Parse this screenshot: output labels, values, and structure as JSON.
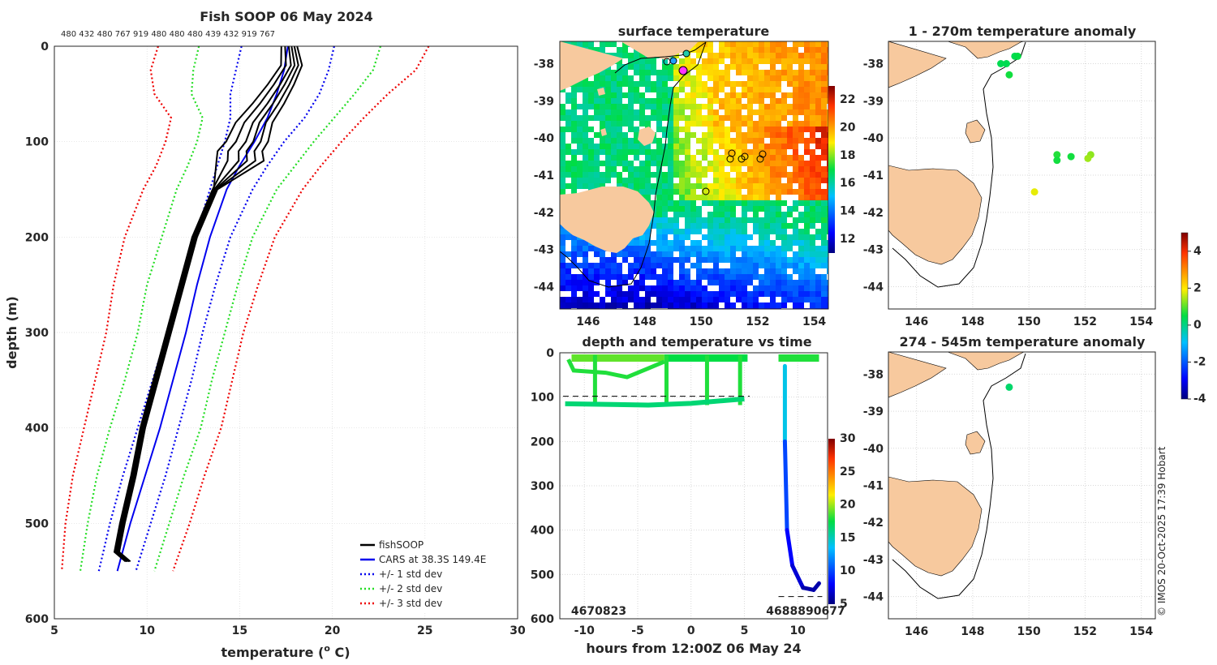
{
  "colors": {
    "land": "#f7c99e",
    "ocean_bg": "#ffffff"
  },
  "icons": {
    "colorbar_sst": "jet-colorbar-icon",
    "colorbar_anom": "jet-colorbar-icon"
  },
  "profile": {
    "title": "Fish SOOP 06 May 2024",
    "top_labels": "480 432 480 767 919 480 480 480 439 432 919 767",
    "xlabel_text": "temperature (",
    "xlabel_sup": "o",
    "xlabel_end": " C)",
    "ylabel": "depth (m)",
    "legend": [
      {
        "label": "fishSOOP",
        "color": "#000000",
        "dash": ""
      },
      {
        "label": "CARS at 38.3S 149.4E",
        "color": "#0000ee",
        "dash": ""
      },
      {
        "label": "+/- 1 std dev",
        "color": "#0000ee",
        "dash": "2,3"
      },
      {
        "label": "+/- 2 std dev",
        "color": "#22dd22",
        "dash": "2,3"
      },
      {
        "label": "+/- 3 std dev",
        "color": "#ee0000",
        "dash": "2,3"
      }
    ]
  },
  "sst_map": {
    "title": "surface temperature",
    "cbar_ticks": [
      "22",
      "20",
      "18",
      "16",
      "14",
      "12"
    ]
  },
  "timeseries": {
    "title": "depth and temperature vs time",
    "xlabel": "hours from 12:00Z 06 May 24",
    "id_left": "4670823",
    "id_right": "4688890677",
    "cbar_ticks": [
      "30",
      "25",
      "20",
      "15",
      "10",
      "5"
    ]
  },
  "anom1": {
    "title": "1 - 270m temperature anomaly"
  },
  "anom2": {
    "title": "274 - 545m temperature anomaly"
  },
  "anom_cbar": {
    "ticks": [
      "4",
      "2",
      "0",
      "-2",
      "-4"
    ]
  },
  "credit": "© IMOS 20-Oct-2025 17:39 Hobart",
  "chart_data": [
    {
      "type": "line",
      "title": "Fish SOOP 06 May 2024",
      "xlabel": "temperature (o C)",
      "ylabel": "depth (m)",
      "xlim": [
        5,
        30
      ],
      "ylim": [
        600,
        0
      ],
      "xticks": [
        5,
        10,
        15,
        20,
        25,
        30
      ],
      "yticks": [
        0,
        100,
        200,
        300,
        400,
        500,
        600
      ],
      "depth": [
        0,
        25,
        50,
        75,
        100,
        125,
        150,
        200,
        250,
        300,
        350,
        400,
        450,
        500,
        550
      ],
      "series": [
        {
          "name": "+/- 3 std dev (low)",
          "values": [
            10.6,
            10.2,
            10.4,
            11.3,
            11.0,
            10.5,
            9.8,
            8.8,
            8.2,
            7.8,
            7.2,
            6.6,
            6.0,
            5.6,
            5.4
          ]
        },
        {
          "name": "+/- 2 std dev (low)",
          "values": [
            12.8,
            12.5,
            12.4,
            13.0,
            12.7,
            12.2,
            11.6,
            10.8,
            10.0,
            9.5,
            8.8,
            8.0,
            7.3,
            6.8,
            6.4
          ]
        },
        {
          "name": "+/- 1 std dev (low)",
          "values": [
            15.1,
            14.8,
            14.5,
            14.5,
            14.2,
            13.8,
            13.4,
            12.6,
            11.8,
            11.1,
            10.3,
            9.5,
            8.7,
            8.0,
            7.4
          ]
        },
        {
          "name": "CARS at 38.3S 149.4E",
          "values": [
            17.6,
            17.4,
            17.0,
            16.5,
            15.8,
            15.0,
            14.3,
            13.4,
            12.7,
            12.1,
            11.4,
            10.7,
            9.9,
            9.1,
            8.4
          ]
        },
        {
          "name": "+/- 1 std dev (high)",
          "values": [
            20.1,
            19.8,
            19.3,
            18.5,
            17.4,
            16.5,
            15.7,
            14.5,
            13.7,
            13.0,
            12.4,
            11.7,
            11.0,
            10.2,
            9.4
          ]
        },
        {
          "name": "+/- 2 std dev (high)",
          "values": [
            22.6,
            22.2,
            21.2,
            20.1,
            19.0,
            18.0,
            17.0,
            15.7,
            14.9,
            14.2,
            13.5,
            12.9,
            12.0,
            11.2,
            10.4
          ]
        },
        {
          "name": "+/- 3 std dev (high)",
          "values": [
            25.2,
            24.5,
            23.0,
            21.7,
            20.5,
            19.4,
            18.4,
            16.9,
            16.0,
            15.2,
            14.6,
            14.0,
            13.1,
            12.3,
            11.4
          ]
        }
      ],
      "fishsoop_profile": {
        "depth": [
          0,
          20,
          40,
          60,
          80,
          100,
          110,
          120,
          150,
          200,
          250,
          300,
          350,
          400,
          450,
          500,
          530,
          540
        ],
        "temp": [
          17.6,
          17.7,
          17.1,
          16.4,
          15.6,
          15.2,
          14.8,
          14.8,
          13.6,
          12.5,
          11.8,
          11.1,
          10.4,
          9.7,
          9.2,
          8.6,
          8.3,
          8.9
        ]
      }
    },
    {
      "type": "heatmap",
      "title": "surface temperature",
      "xlim": [
        145,
        154.5
      ],
      "ylim": [
        -44.6,
        -37.4
      ],
      "xticks": [
        146,
        148,
        150,
        152,
        154
      ],
      "yticks": [
        -38,
        -39,
        -40,
        -41,
        -42,
        -43,
        -44
      ],
      "clim": [
        11,
        23
      ],
      "colorbar_ticks": [
        12,
        14,
        16,
        18,
        20,
        22
      ],
      "stations": [
        [
          148.9,
          -37.95
        ],
        [
          149.1,
          -37.9
        ],
        [
          149.9,
          -37.85
        ],
        [
          149.4,
          -38.25
        ],
        [
          151.0,
          -40.5
        ],
        [
          151.5,
          -40.55
        ],
        [
          152.1,
          -40.5
        ],
        [
          150.6,
          -41.45
        ]
      ]
    },
    {
      "type": "scatter",
      "title": "depth and temperature vs time",
      "xlabel": "hours from 12:00Z 06 May 24",
      "xlim": [
        -12.3,
        12.8
      ],
      "ylim": [
        600,
        0
      ],
      "xticks": [
        -10,
        -5,
        0,
        5,
        10
      ],
      "yticks": [
        0,
        100,
        200,
        300,
        400,
        500,
        600
      ],
      "clim": [
        5,
        30
      ],
      "colorbar_ticks": [
        5,
        10,
        15,
        20,
        25,
        30
      ],
      "segments": [
        {
          "t": [
            -11.2,
            -2.5
          ],
          "depth": [
            15,
            15
          ],
          "temp": 19
        },
        {
          "t": [
            -11.8,
            5.0
          ],
          "depth": [
            118,
            110
          ],
          "temp": 17
        },
        {
          "t": [
            8.2,
            12.0
          ],
          "depth": [
            15,
            15
          ],
          "temp": 18
        },
        {
          "t": [
            8.8,
            8.8,
            9.0,
            9.5,
            10.5,
            11.5,
            12.0
          ],
          "depth": [
            30,
            200,
            400,
            480,
            530,
            535,
            520
          ],
          "temp_gradient": [
            17,
            14,
            10,
            8,
            7,
            6,
            6
          ]
        }
      ]
    },
    {
      "type": "scatter",
      "title": "1 - 270m temperature anomaly",
      "xlim": [
        145,
        154.5
      ],
      "ylim": [
        -44.6,
        -37.4
      ],
      "clim": [
        -4,
        5
      ],
      "points": [
        [
          149.5,
          -37.8,
          0.4
        ],
        [
          149.6,
          -37.8,
          0.5
        ],
        [
          149.0,
          -38.0,
          0.4
        ],
        [
          149.2,
          -38.0,
          0.4
        ],
        [
          149.3,
          -38.3,
          0.6
        ],
        [
          151.0,
          -40.45,
          0.7
        ],
        [
          151.5,
          -40.5,
          0.6
        ],
        [
          152.2,
          -40.45,
          1.3
        ],
        [
          152.1,
          -40.55,
          1.4
        ],
        [
          151.0,
          -40.6,
          0.6
        ],
        [
          150.2,
          -41.45,
          1.8
        ]
      ]
    },
    {
      "type": "scatter",
      "title": "274 - 545m temperature anomaly",
      "xlim": [
        145,
        154.5
      ],
      "ylim": [
        -44.6,
        -37.4
      ],
      "clim": [
        -4,
        5
      ],
      "points": [
        [
          149.3,
          -38.35,
          0.2
        ]
      ]
    }
  ]
}
